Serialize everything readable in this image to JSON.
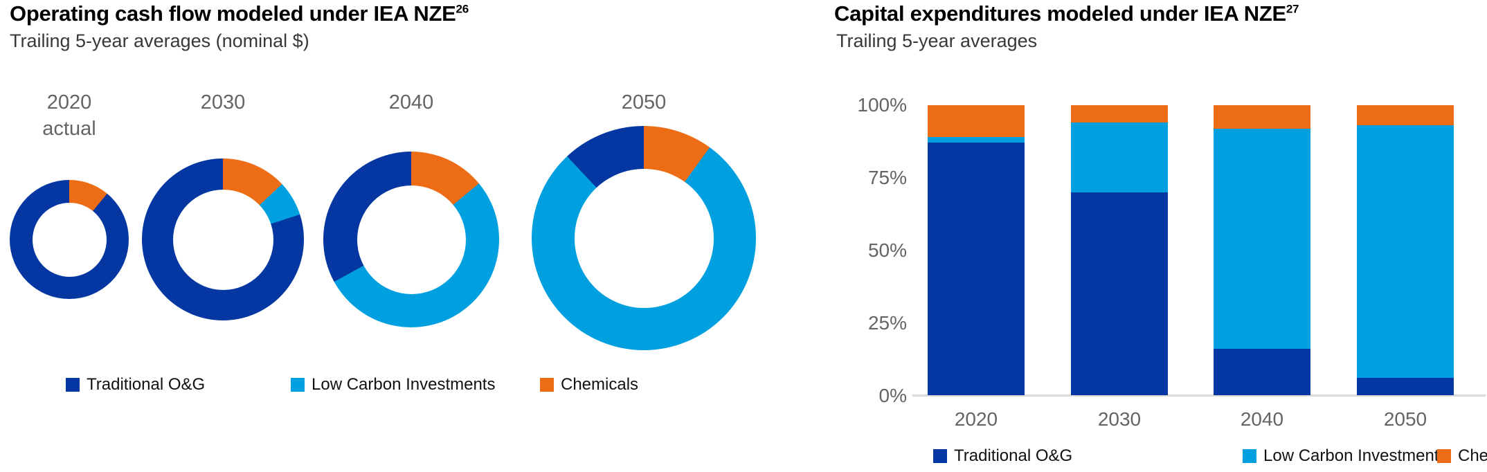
{
  "colors": {
    "traditional": "#0437a2",
    "low_carbon": "#00a0e0",
    "chemicals": "#ec6d16",
    "axis_line": "#d9d9d9",
    "year_label": "#646464",
    "title": "#000000",
    "subtitle": "#383838"
  },
  "left_chart": {
    "title": "Operating cash flow modeled under IEA NZE",
    "title_superscript": "26",
    "subtitle": "Trailing 5-year averages (nominal $)",
    "donuts": [
      {
        "label": "2020",
        "sublabel": "actual",
        "traditional": 89,
        "low_carbon": 0,
        "chemicals": 11
      },
      {
        "label": "2030",
        "sublabel": "",
        "traditional": 80,
        "low_carbon": 7,
        "chemicals": 13
      },
      {
        "label": "2040",
        "sublabel": "",
        "traditional": 33,
        "low_carbon": 53,
        "chemicals": 14
      },
      {
        "label": "2050",
        "sublabel": "",
        "traditional": 12,
        "low_carbon": 78,
        "chemicals": 10
      }
    ],
    "legend": [
      {
        "label": "Traditional O&G",
        "color_key": "traditional"
      },
      {
        "label": "Low Carbon Investments",
        "color_key": "low_carbon"
      },
      {
        "label": "Chemicals",
        "color_key": "chemicals"
      }
    ]
  },
  "right_chart": {
    "title": "Capital expenditures modeled under IEA NZE",
    "title_superscript": "27",
    "subtitle": "Trailing 5-year averages",
    "y_ticks": [
      "100%",
      "75%",
      "50%",
      "25%",
      "0%"
    ],
    "bars": [
      {
        "label": "2020",
        "traditional": 87,
        "low_carbon": 2,
        "chemicals": 11
      },
      {
        "label": "2030",
        "traditional": 70,
        "low_carbon": 24,
        "chemicals": 6
      },
      {
        "label": "2040",
        "traditional": 16,
        "low_carbon": 76,
        "chemicals": 8
      },
      {
        "label": "2050",
        "traditional": 6,
        "low_carbon": 87,
        "chemicals": 7
      }
    ],
    "legend": [
      {
        "label": "Traditional O&G",
        "color_key": "traditional"
      },
      {
        "label": "Low Carbon Investments",
        "color_key": "low_carbon"
      },
      {
        "label": "Chemicals",
        "color_key": "chemicals"
      }
    ]
  },
  "chart_data": [
    {
      "type": "pie",
      "subtype": "donut-multiples",
      "title": "Operating cash flow modeled under IEA NZE (26)",
      "subtitle": "Trailing 5-year averages (nominal $)",
      "legend_position": "bottom",
      "units": "percent share, donut size increases with total",
      "categories": [
        "Traditional O&G",
        "Low Carbon Investments",
        "Chemicals"
      ],
      "donuts": [
        {
          "label": "2020 actual",
          "values": [
            89,
            0,
            11
          ]
        },
        {
          "label": "2030",
          "values": [
            80,
            7,
            13
          ]
        },
        {
          "label": "2040",
          "values": [
            33,
            53,
            14
          ]
        },
        {
          "label": "2050",
          "values": [
            12,
            78,
            10
          ]
        }
      ]
    },
    {
      "type": "bar",
      "subtype": "stacked-100",
      "title": "Capital expenditures modeled under IEA NZE (27)",
      "subtitle": "Trailing 5-year averages",
      "legend_position": "bottom",
      "categories": [
        "2020",
        "2030",
        "2040",
        "2050"
      ],
      "series": [
        {
          "name": "Traditional O&G",
          "values": [
            87,
            70,
            16,
            6
          ]
        },
        {
          "name": "Low Carbon Investments",
          "values": [
            2,
            24,
            76,
            87
          ]
        },
        {
          "name": "Chemicals",
          "values": [
            11,
            6,
            8,
            7
          ]
        }
      ],
      "ylabel": "",
      "xlabel": "",
      "ylim": [
        0,
        100
      ],
      "y_tick_labels": [
        "0%",
        "25%",
        "50%",
        "75%",
        "100%"
      ],
      "grid": false
    }
  ]
}
